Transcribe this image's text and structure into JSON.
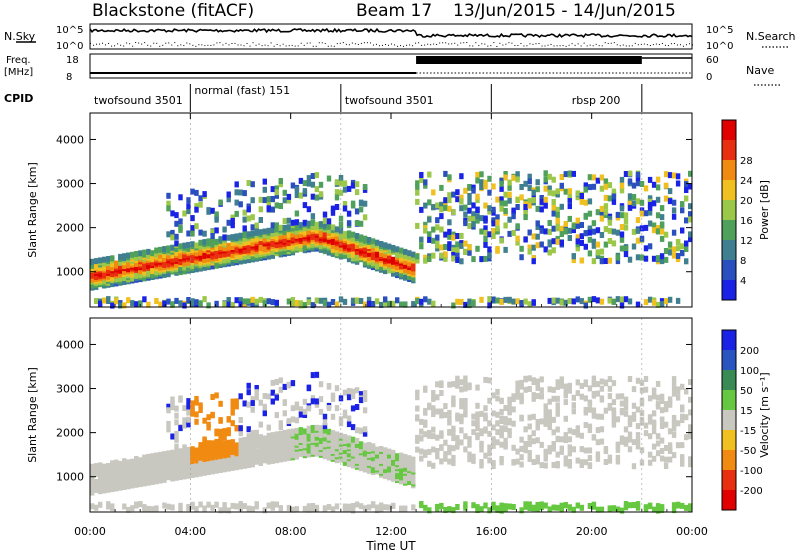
{
  "header": {
    "station": "Blackstone (fitACF)",
    "beam": "Beam 17",
    "date_range": "13/Jun/2015 - 14/Jun/2015"
  },
  "top_panels": {
    "nsky_label": "N.Sky",
    "nsearch_label": "N.Search",
    "nsky_ticks": [
      "10^5",
      "10^0"
    ],
    "nsearch_ticks": [
      "10^5",
      "10^0"
    ],
    "freq_label_1": "Freq.",
    "freq_label_2": "[MHz]",
    "freq_ticks": [
      "18",
      "8"
    ],
    "nave_label": "Nave",
    "nave_ticks": [
      "60",
      "0"
    ],
    "cpid_label": "CPID",
    "cpid_segments": [
      {
        "label": "twofsound 3501",
        "start_h": 0,
        "end_h": 4
      },
      {
        "label": "normal (fast) 151",
        "start_h": 4,
        "end_h": 10
      },
      {
        "label": "twofsound 3501",
        "start_h": 10,
        "end_h": 16
      },
      {
        "label": "rbsp 200",
        "start_h": 16,
        "end_h": 22
      }
    ]
  },
  "chart_data": [
    {
      "type": "heatmap",
      "name": "power",
      "ylabel": "Slant Range [km]",
      "y_ticks": [
        "1000",
        "2000",
        "3000",
        "4000"
      ],
      "ylim": [
        200,
        4600
      ],
      "xlim": [
        0,
        24
      ],
      "colorbar_label": "Power [dB]",
      "colorbar_ticks": [
        "4",
        "8",
        "12",
        "16",
        "20",
        "24",
        "28"
      ],
      "colors": [
        "#1a22e6",
        "#2a4fbf",
        "#3f7f8f",
        "#4fa05a",
        "#9cc84a",
        "#f0c020",
        "#f08a10",
        "#e83010",
        "#e00000"
      ]
    },
    {
      "type": "heatmap",
      "name": "velocity",
      "ylabel": "Slant Range [km]",
      "y_ticks": [
        "1000",
        "2000",
        "3000",
        "4000"
      ],
      "ylim": [
        200,
        4600
      ],
      "xlim": [
        0,
        24
      ],
      "colorbar_label": "Velocity [m s⁻¹]",
      "colorbar_ticks": [
        "200",
        "100",
        "50",
        "15",
        "-15",
        "-50",
        "-100",
        "-200"
      ],
      "colors": [
        "#1a22e6",
        "#2a55c0",
        "#3a8a55",
        "#66c840",
        "#c8c8c0",
        "#f0c020",
        "#f08a10",
        "#e83010",
        "#e00000"
      ]
    }
  ],
  "x_axis": {
    "label": "Time UT",
    "ticks": [
      "00:00",
      "04:00",
      "08:00",
      "12:00",
      "16:00",
      "20:00",
      "00:00"
    ]
  },
  "colors": {
    "ground_scatter": "#c8c8c0",
    "frame": "#000000"
  }
}
